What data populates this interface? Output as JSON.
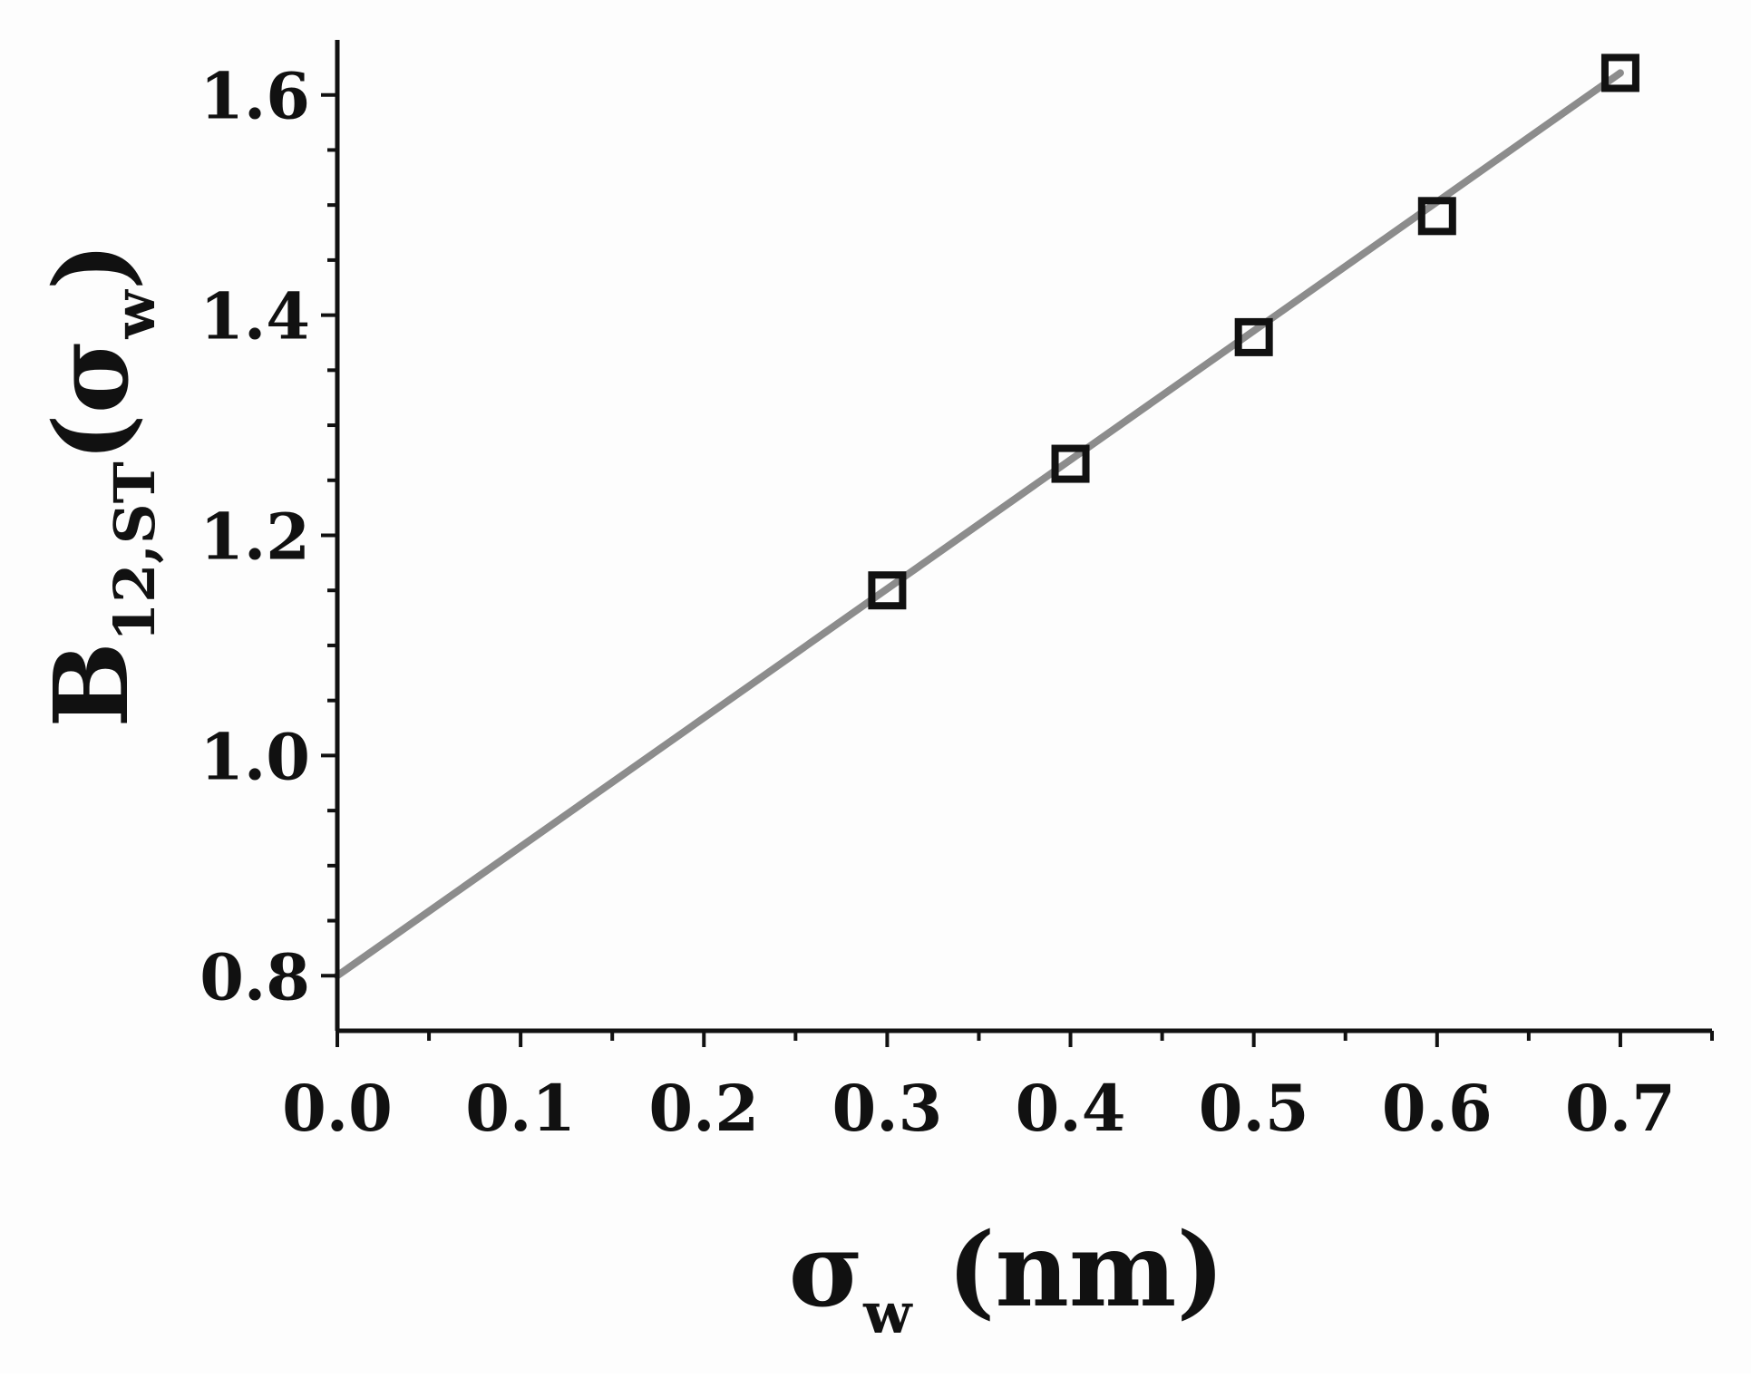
{
  "chart_data": {
    "type": "scatter",
    "title": "",
    "xlabel": {
      "symbol": "σ",
      "subscript": "w",
      "unit": " (nm)"
    },
    "ylabel": {
      "symbol": "B",
      "subscript": "12,ST",
      "argument_open": "(σ",
      "argument_subscript": "w",
      "argument_close": ")"
    },
    "xlim": [
      0.0,
      0.75
    ],
    "ylim": [
      0.75,
      1.65
    ],
    "x_ticks": [
      0.0,
      0.1,
      0.2,
      0.3,
      0.4,
      0.5,
      0.6,
      0.7
    ],
    "x_tick_labels": [
      "0.0",
      "0.1",
      "0.2",
      "0.3",
      "0.4",
      "0.5",
      "0.6",
      "0.7"
    ],
    "x_minor_ticks": [
      0.05,
      0.15,
      0.25,
      0.35,
      0.45,
      0.55,
      0.65,
      0.75
    ],
    "y_ticks": [
      0.8,
      1.0,
      1.2,
      1.4,
      1.6
    ],
    "y_tick_labels": [
      "0.8",
      "1.0",
      "1.2",
      "1.4",
      "1.6"
    ],
    "y_minor_ticks": [
      0.85,
      0.9,
      0.95,
      1.05,
      1.1,
      1.15,
      1.25,
      1.3,
      1.35,
      1.45,
      1.5,
      1.55
    ],
    "grid": false,
    "legend": "none",
    "series": [
      {
        "kind": "scatter",
        "marker": "open-square",
        "color": "#111111",
        "x": [
          0.3,
          0.4,
          0.5,
          0.6,
          0.7
        ],
        "y": [
          1.15,
          1.265,
          1.38,
          1.49,
          1.62
        ]
      },
      {
        "kind": "line",
        "color": "#8c8c8c",
        "x": [
          0.0,
          0.7
        ],
        "y": [
          0.8,
          1.62
        ]
      }
    ]
  }
}
